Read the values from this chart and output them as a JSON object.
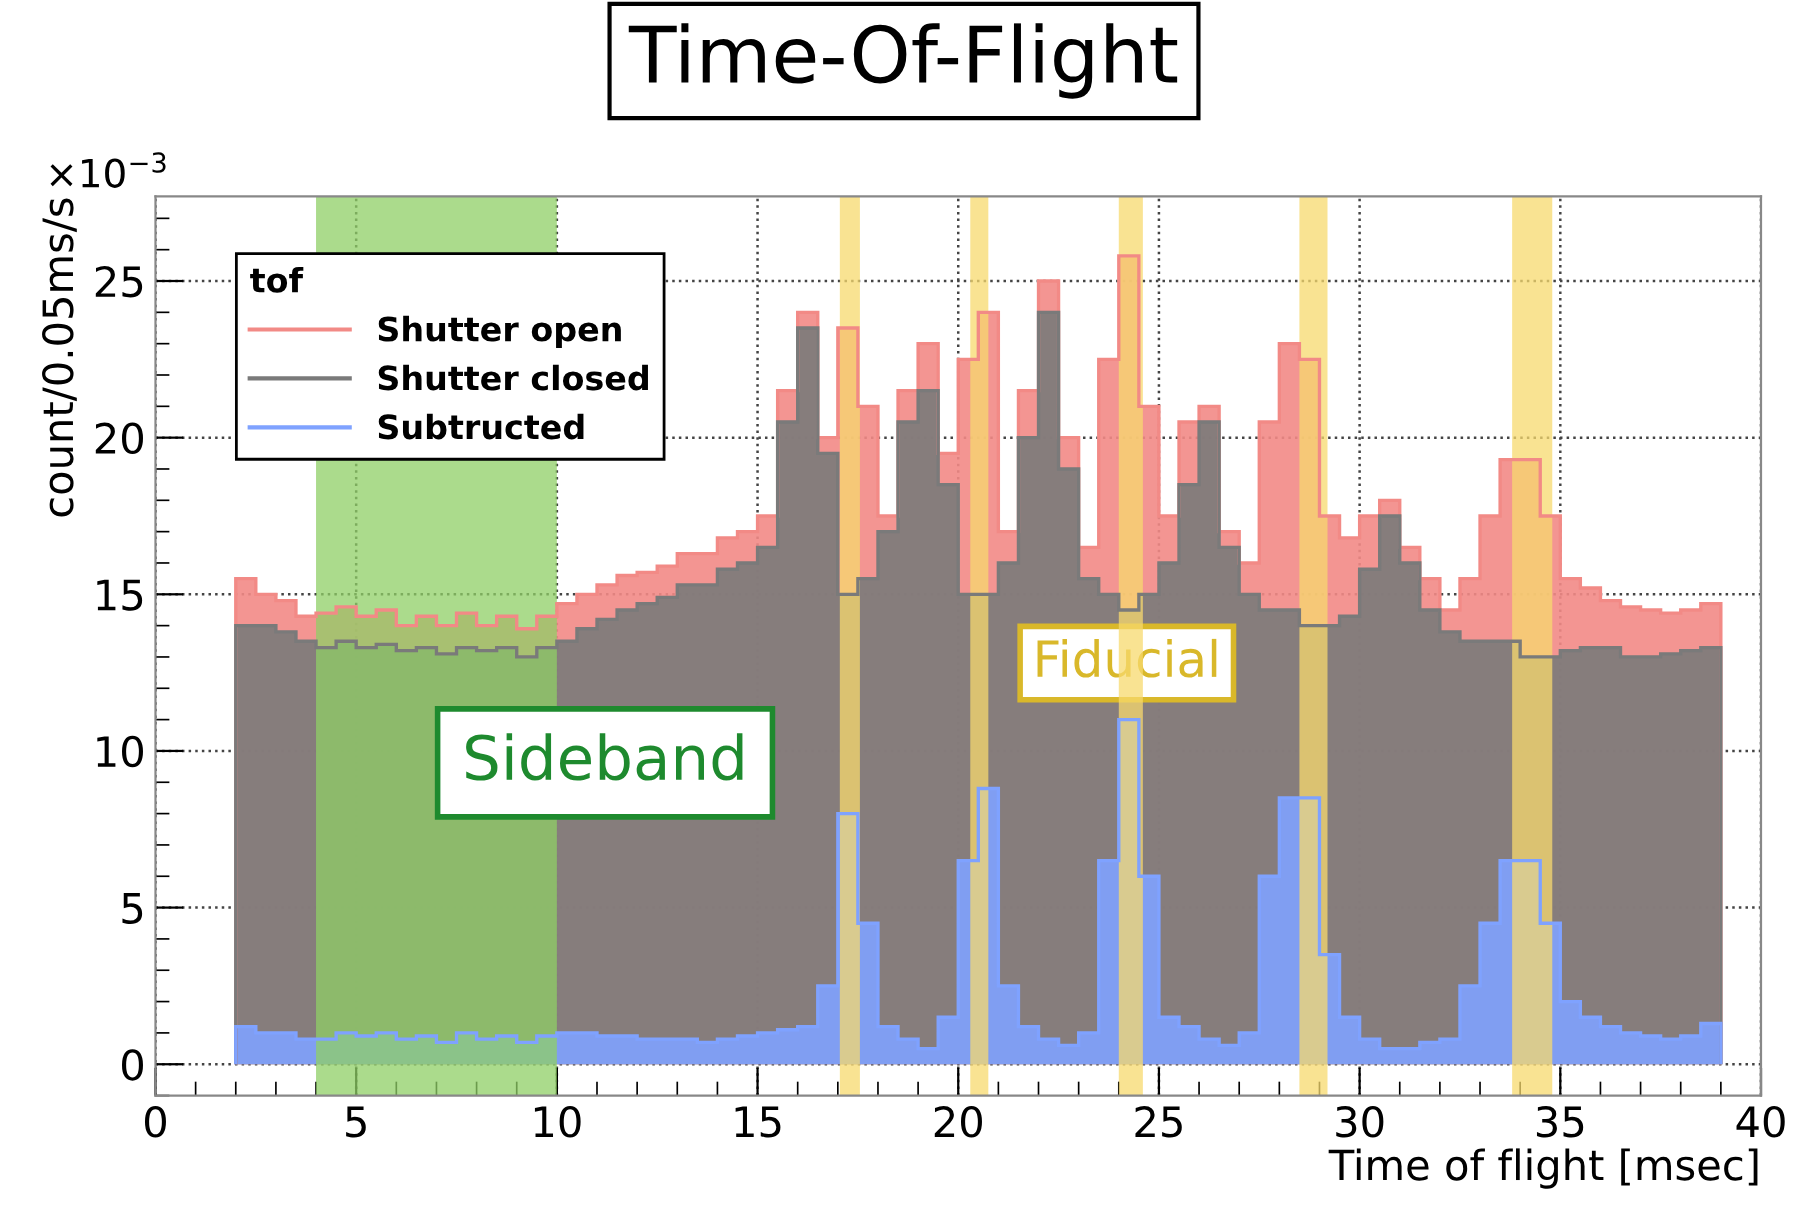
{
  "chart_data": {
    "type": "histogram",
    "title": "Time-Of-Flight",
    "xlabel": "Time of flight [msec]",
    "ylabel": "count/0.05ms/s",
    "legend_title": "tof",
    "bins": [
      2.0,
      2.5,
      3.0,
      3.5,
      4.0,
      4.5,
      5.0,
      5.5,
      6.0,
      6.5,
      7.0,
      7.5,
      8.0,
      8.5,
      9.0,
      9.5,
      10.0,
      10.5,
      11.0,
      11.5,
      12.0,
      12.5,
      13.0,
      13.5,
      14.0,
      14.5,
      15.0,
      15.5,
      16.0,
      16.5,
      17.0,
      17.5,
      18.0,
      18.5,
      19.0,
      19.5,
      20.0,
      20.5,
      21.0,
      21.5,
      22.0,
      22.5,
      23.0,
      23.5,
      24.0,
      24.5,
      25.0,
      25.5,
      26.0,
      26.5,
      27.0,
      27.5,
      28.0,
      28.5,
      29.0,
      29.5,
      30.0,
      30.5,
      31.0,
      31.5,
      32.0,
      32.5,
      33.0,
      33.5,
      34.0,
      34.5,
      35.0,
      35.5,
      36.0,
      36.5,
      37.0,
      37.5,
      38.0,
      38.5,
      39.0
    ],
    "series": [
      {
        "name": "Shutter open",
        "color": "#f28a86",
        "values": [
          15.5,
          15.0,
          14.8,
          14.3,
          14.4,
          14.6,
          14.3,
          14.5,
          14.0,
          14.3,
          14.0,
          14.4,
          14.0,
          14.3,
          13.9,
          14.3,
          14.7,
          15.0,
          15.3,
          15.6,
          15.7,
          15.9,
          16.3,
          16.3,
          16.8,
          17.0,
          17.5,
          21.5,
          24.0,
          20.0,
          23.5,
          21.0,
          17.5,
          21.5,
          23.0,
          19.5,
          22.5,
          24.0,
          17.0,
          21.5,
          25.0,
          20.0,
          16.5,
          22.5,
          25.8,
          21.0,
          17.5,
          20.5,
          21.0,
          17.0,
          16.0,
          20.5,
          23.0,
          22.5,
          17.5,
          16.8,
          17.5,
          18.0,
          16.5,
          15.5,
          14.5,
          15.5,
          17.5,
          19.3,
          19.3,
          17.5,
          15.5,
          15.2,
          14.8,
          14.6,
          14.5,
          14.4,
          14.5,
          14.7
        ]
      },
      {
        "name": "Shutter closed",
        "color": "#7a7a7a",
        "values": [
          14.0,
          14.0,
          13.8,
          13.5,
          13.3,
          13.5,
          13.3,
          13.4,
          13.2,
          13.3,
          13.1,
          13.3,
          13.2,
          13.3,
          13.0,
          13.3,
          13.5,
          13.9,
          14.2,
          14.5,
          14.7,
          14.9,
          15.3,
          15.3,
          15.8,
          16.0,
          16.5,
          20.5,
          23.5,
          19.5,
          15.0,
          15.5,
          17.0,
          20.5,
          21.5,
          18.5,
          15.0,
          15.0,
          16.0,
          20.0,
          24.0,
          19.0,
          15.5,
          15.0,
          14.5,
          15.0,
          16.0,
          18.5,
          20.5,
          16.5,
          15.0,
          14.5,
          14.5,
          14.0,
          14.0,
          14.3,
          15.8,
          17.5,
          16.0,
          14.5,
          13.8,
          13.5,
          13.5,
          13.5,
          13.0,
          13.0,
          13.2,
          13.3,
          13.3,
          13.0,
          13.0,
          13.1,
          13.2,
          13.3
        ]
      },
      {
        "name": "Subtructed",
        "color": "#7fa2ff",
        "values": [
          1.2,
          1.0,
          1.0,
          0.8,
          0.8,
          1.0,
          0.9,
          1.0,
          0.8,
          0.9,
          0.7,
          1.0,
          0.8,
          0.9,
          0.7,
          0.9,
          1.0,
          1.0,
          0.9,
          0.9,
          0.8,
          0.8,
          0.8,
          0.7,
          0.8,
          0.9,
          1.0,
          1.1,
          1.2,
          2.5,
          8.0,
          4.5,
          1.2,
          0.8,
          0.5,
          1.5,
          6.5,
          8.8,
          2.5,
          1.2,
          0.8,
          0.6,
          1.0,
          6.5,
          11.0,
          6.0,
          1.5,
          1.2,
          0.8,
          0.6,
          1.0,
          6.0,
          8.5,
          8.5,
          3.5,
          1.5,
          0.8,
          0.5,
          0.5,
          0.7,
          0.8,
          2.5,
          4.5,
          6.5,
          6.5,
          4.5,
          2.0,
          1.5,
          1.2,
          1.0,
          0.9,
          0.8,
          0.9,
          1.3
        ]
      }
    ],
    "xlim": [
      0,
      40
    ],
    "xticks": [
      0,
      5,
      10,
      15,
      20,
      25,
      30,
      35,
      40
    ],
    "ylim": [
      -1,
      27.7
    ],
    "yticks": [
      0,
      5,
      10,
      15,
      20,
      25
    ],
    "bands": [
      {
        "axis": "x",
        "from": 4,
        "to": 10,
        "label": "Sideband",
        "color": "#8fcf66"
      },
      {
        "axis": "x",
        "from": 17.05,
        "to": 17.55,
        "color": "#f7d96e"
      },
      {
        "axis": "x",
        "from": 20.3,
        "to": 20.75,
        "color": "#f7d96e"
      },
      {
        "axis": "x",
        "from": 24.0,
        "to": 24.6,
        "color": "#f7d96e"
      },
      {
        "axis": "x",
        "from": 28.5,
        "to": 29.2,
        "color": "#f7d96e"
      },
      {
        "axis": "x",
        "from": 33.8,
        "to": 34.8,
        "color": "#f7d96e"
      }
    ],
    "annotations": [
      "×10$^{−3}$",
      "Fiducial"
    ],
    "grid": true,
    "legend": "top left"
  }
}
